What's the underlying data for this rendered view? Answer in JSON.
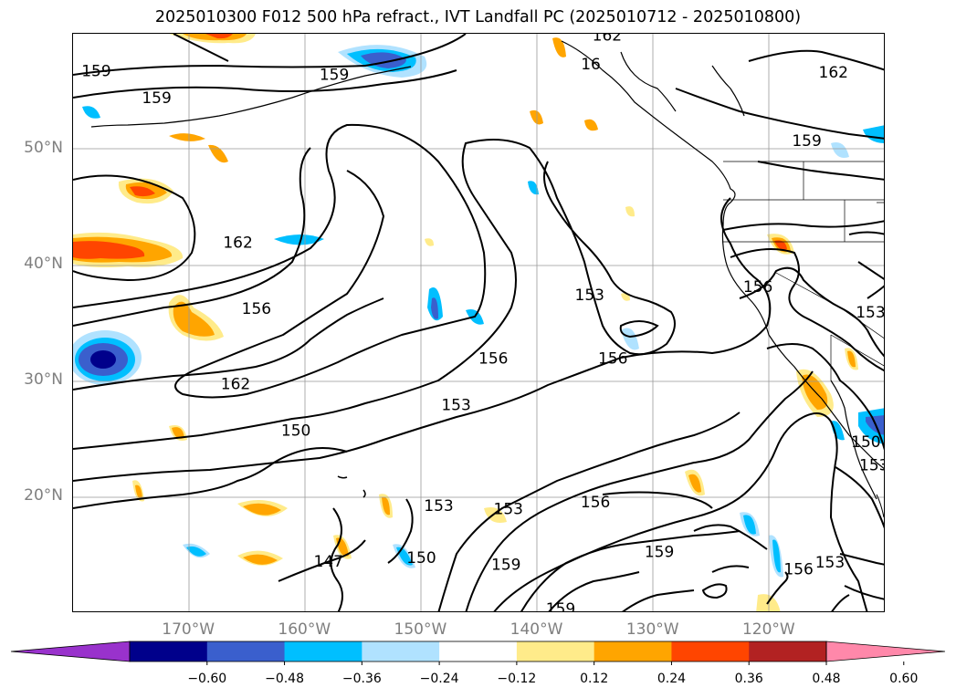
{
  "title": "2025010300 F012 500 hPa refract., IVT Landfall PC (2025010712 - 2025010800)",
  "axes": {
    "lat_labels": [
      {
        "label": "50°N",
        "lat": 50
      },
      {
        "label": "40°N",
        "lat": 40
      },
      {
        "label": "30°N",
        "lat": 30
      },
      {
        "label": "20°N",
        "lat": 20
      }
    ],
    "lon_labels": [
      {
        "label": "170°W",
        "lon": -170
      },
      {
        "label": "160°W",
        "lon": -160
      },
      {
        "label": "150°W",
        "lon": -150
      },
      {
        "label": "140°W",
        "lon": -140
      },
      {
        "label": "130°W",
        "lon": -130
      },
      {
        "label": "120°W",
        "lon": -120
      }
    ],
    "lon_range": [
      -180,
      -110
    ],
    "lat_range": [
      10,
      60
    ]
  },
  "contour_labels": [
    {
      "text": "159",
      "lon": -178,
      "lat": 56.8
    },
    {
      "text": "159",
      "lon": -172.8,
      "lat": 54.5
    },
    {
      "text": "159",
      "lon": -157.5,
      "lat": 56.5
    },
    {
      "text": "162",
      "lon": -165.8,
      "lat": 42.0
    },
    {
      "text": "156",
      "lon": -164.2,
      "lat": 36.3
    },
    {
      "text": "162",
      "lon": -166.0,
      "lat": 29.8
    },
    {
      "text": "150",
      "lon": -160.8,
      "lat": 25.8
    },
    {
      "text": "153",
      "lon": -147.0,
      "lat": 28.0
    },
    {
      "text": "156",
      "lon": -143.8,
      "lat": 32.0
    },
    {
      "text": "153",
      "lon": -135.5,
      "lat": 37.5
    },
    {
      "text": "156",
      "lon": -133.5,
      "lat": 32.0
    },
    {
      "text": "156",
      "lon": -121.0,
      "lat": 38.2
    },
    {
      "text": "153",
      "lon": -142.5,
      "lat": 19.0
    },
    {
      "text": "156",
      "lon": -135.0,
      "lat": 19.6
    },
    {
      "text": "153",
      "lon": -148.5,
      "lat": 19.3
    },
    {
      "text": "150",
      "lon": -150.0,
      "lat": 14.8
    },
    {
      "text": "159",
      "lon": -142.7,
      "lat": 14.2
    },
    {
      "text": "159",
      "lon": -129.5,
      "lat": 15.3
    },
    {
      "text": "147",
      "lon": -158.0,
      "lat": 14.5
    },
    {
      "text": "159",
      "lon": -138.0,
      "lat": 10.4
    },
    {
      "text": "153",
      "lon": -114.8,
      "lat": 14.4
    },
    {
      "text": "156",
      "lon": -117.5,
      "lat": 13.8
    },
    {
      "text": "162",
      "lon": -114.5,
      "lat": 56.7
    },
    {
      "text": "159",
      "lon": -116.8,
      "lat": 50.8
    },
    {
      "text": "16",
      "lon": -135.4,
      "lat": 57.4
    },
    {
      "text": "162",
      "lon": -134.0,
      "lat": 59.9
    },
    {
      "text": "153",
      "lon": -111.3,
      "lat": 36.0
    },
    {
      "text": "150",
      "lon": -111.7,
      "lat": 24.8
    },
    {
      "text": "153",
      "lon": -111.0,
      "lat": 22.8
    }
  ],
  "colorbar": {
    "ticks": [
      "−0.60",
      "−0.48",
      "−0.36",
      "−0.24",
      "−0.12",
      "0.12",
      "0.24",
      "0.36",
      "0.48",
      "0.60"
    ],
    "colors": [
      "#9932cc",
      "#00008b",
      "#3a5fcd",
      "#00bfff",
      "#b0e2ff",
      "#ffffff",
      "#ffeb8a",
      "#ffa500",
      "#ff4500",
      "#b22222",
      "#ff88aa"
    ],
    "bounds": [
      -0.6,
      -0.48,
      -0.36,
      -0.24,
      -0.12,
      0.12,
      0.24,
      0.36,
      0.48,
      0.6
    ]
  },
  "shaded_regions": [
    {
      "lon": -178.2,
      "lat": 31.5,
      "value": -0.5
    },
    {
      "lon": -175.5,
      "lat": 41.5,
      "value": 0.4
    },
    {
      "lon": -175.5,
      "lat": 46.5,
      "value": 0.35
    },
    {
      "lon": -168.0,
      "lat": 35.5,
      "value": 0.3
    },
    {
      "lon": -157.5,
      "lat": 57.8,
      "value": -0.4
    },
    {
      "lon": -168.5,
      "lat": 59.5,
      "value": 0.3
    },
    {
      "lon": -150.0,
      "lat": 36.5,
      "value": -0.3
    },
    {
      "lon": -146.0,
      "lat": 35.5,
      "value": -0.25
    },
    {
      "lon": -163.0,
      "lat": 17.5,
      "value": 0.3
    },
    {
      "lon": -162.5,
      "lat": 13.0,
      "value": 0.35
    },
    {
      "lon": -114.5,
      "lat": 29.5,
      "value": 0.3
    },
    {
      "lon": -111.0,
      "lat": 25.5,
      "value": -0.4
    },
    {
      "lon": -119.0,
      "lat": 41.5,
      "value": 0.35
    },
    {
      "lon": -125.0,
      "lat": 21.0,
      "value": 0.3
    },
    {
      "lon": -170.0,
      "lat": 25.5,
      "value": 0.2
    },
    {
      "lon": -148.0,
      "lat": 13.0,
      "value": -0.3
    },
    {
      "lon": -119.5,
      "lat": 14.0,
      "value": -0.3
    },
    {
      "lon": -170.0,
      "lat": 14.0,
      "value": -0.3
    }
  ]
}
